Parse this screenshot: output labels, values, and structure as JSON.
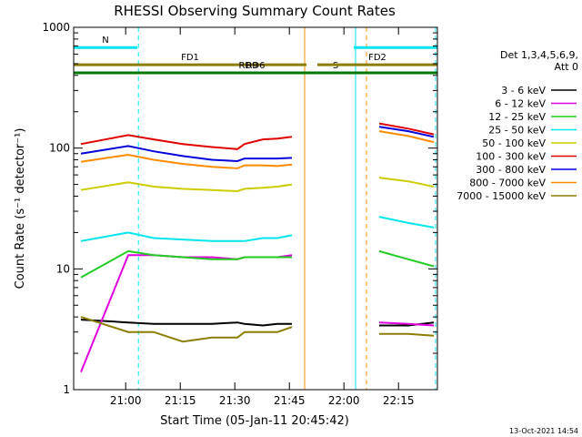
{
  "chart_data": {
    "type": "line",
    "title": "RHESSI Observing Summary Count Rates",
    "xlabel": "Start Time (05-Jan-11 20:45:42)",
    "ylabel": "Count Rate (s⁻¹ detector⁻¹)",
    "y_scale": "log",
    "ylim": [
      1,
      1000
    ],
    "xlim_minutes_after_start": [
      0,
      100
    ],
    "x_ticks": [
      "21:00",
      "21:15",
      "21:30",
      "21:45",
      "22:00",
      "22:15"
    ],
    "x_tick_minutes": [
      14.3,
      29.3,
      44.3,
      59.3,
      74.3,
      89.3
    ],
    "y_ticks": [
      "1",
      "10",
      "100",
      "1000"
    ],
    "y_tick_values": [
      1,
      10,
      100,
      1000
    ],
    "legend": {
      "header": [
        "Det 1,3,4,5,6,9,",
        "Att 0"
      ],
      "placement": "right"
    },
    "series": [
      {
        "name": "3 - 6 keV",
        "color": "#000000",
        "values": [
          3.8,
          3.6,
          3.5,
          3.5,
          3.5,
          3.6,
          3.5,
          3.4,
          3.5,
          3.5,
          3.4,
          3.4,
          3.6
        ]
      },
      {
        "name": "6 - 12 keV",
        "color": "#e000e0",
        "values": [
          1.4,
          13,
          13,
          12.5,
          12.5,
          12,
          12.5,
          12.5,
          12.5,
          13,
          3.6,
          3.5,
          3.4
        ]
      },
      {
        "name": "12 - 25 keV",
        "color": "#22cc22",
        "values": [
          8.5,
          14,
          13,
          12.5,
          12,
          12,
          12.5,
          12.5,
          12.5,
          12.5,
          14,
          12,
          10.5
        ]
      },
      {
        "name": "25 - 50 keV",
        "color": "#00e5ee",
        "values": [
          17,
          20,
          18,
          17.5,
          17,
          17,
          17,
          18,
          18,
          19,
          27,
          24,
          22
        ]
      },
      {
        "name": "50 - 100 keV",
        "color": "#cccc00",
        "values": [
          45,
          52,
          48,
          46,
          45,
          44,
          46,
          47,
          48,
          50,
          57,
          53,
          48
        ]
      },
      {
        "name": "100 - 300 keV",
        "color": "#e00000",
        "values": [
          108,
          128,
          118,
          108,
          102,
          98,
          108,
          118,
          120,
          124,
          160,
          145,
          130
        ]
      },
      {
        "name": "300 - 800 keV",
        "color": "#0000dd",
        "values": [
          90,
          104,
          94,
          86,
          80,
          78,
          82,
          82,
          82,
          83,
          150,
          138,
          124
        ]
      },
      {
        "name": "800 - 7000 keV",
        "color": "#ff8c00",
        "values": [
          77,
          88,
          80,
          74,
          70,
          68,
          72,
          72,
          71,
          73,
          138,
          126,
          112
        ]
      },
      {
        "name": "7000 - 15000 keV",
        "color": "#8b7d00",
        "values": [
          4,
          3,
          3,
          2.5,
          2.7,
          2.7,
          3,
          3,
          3,
          3.3,
          2.9,
          2.9,
          2.8
        ]
      }
    ],
    "x_sample_minutes": [
      2,
      15,
      22,
      30,
      38,
      45,
      47,
      52,
      56,
      60,
      84,
      92,
      99
    ],
    "gaps_minutes": [
      [
        60,
        83
      ]
    ],
    "intervals": [
      {
        "label": "N",
        "color": "#00e5ee",
        "from": 0,
        "to": 17.5,
        "level": 680
      },
      {
        "label": "",
        "color": "#00e5ee",
        "from": 77,
        "to": 100,
        "level": 680
      },
      {
        "label": "S",
        "color": "#ff8c00",
        "from": 63.5,
        "to": 80.5,
        "level": 420
      },
      {
        "label": "FD1",
        "color": "#8b7d00",
        "from": 0,
        "to": 64,
        "level": 490
      },
      {
        "label": "FD2",
        "color": "#8b7d00",
        "from": 67,
        "to": 100,
        "level": 490
      },
      {
        "label": "RD6",
        "color": "#007700",
        "from": 0,
        "to": 100,
        "level": 420
      },
      {
        "label": "RD9",
        "color": "#007700",
        "from": 48,
        "to": 48,
        "level": 420
      }
    ],
    "event_lines_minutes": [
      {
        "minute": 0,
        "color": "#00e5ee",
        "style": "solid"
      },
      {
        "minute": 17.8,
        "color": "#00e5ee",
        "style": "dashed"
      },
      {
        "minute": 63.5,
        "color": "#ff8c00",
        "style": "solid"
      },
      {
        "minute": 77.5,
        "color": "#00e5ee",
        "style": "solid"
      },
      {
        "minute": 80.5,
        "color": "#ff8c00",
        "style": "dashed"
      },
      {
        "minute": 99.5,
        "color": "#00e5ee",
        "style": "dashed"
      }
    ],
    "grid": false
  },
  "footer": {
    "datestamp": "13-Oct-2021 14:54"
  }
}
